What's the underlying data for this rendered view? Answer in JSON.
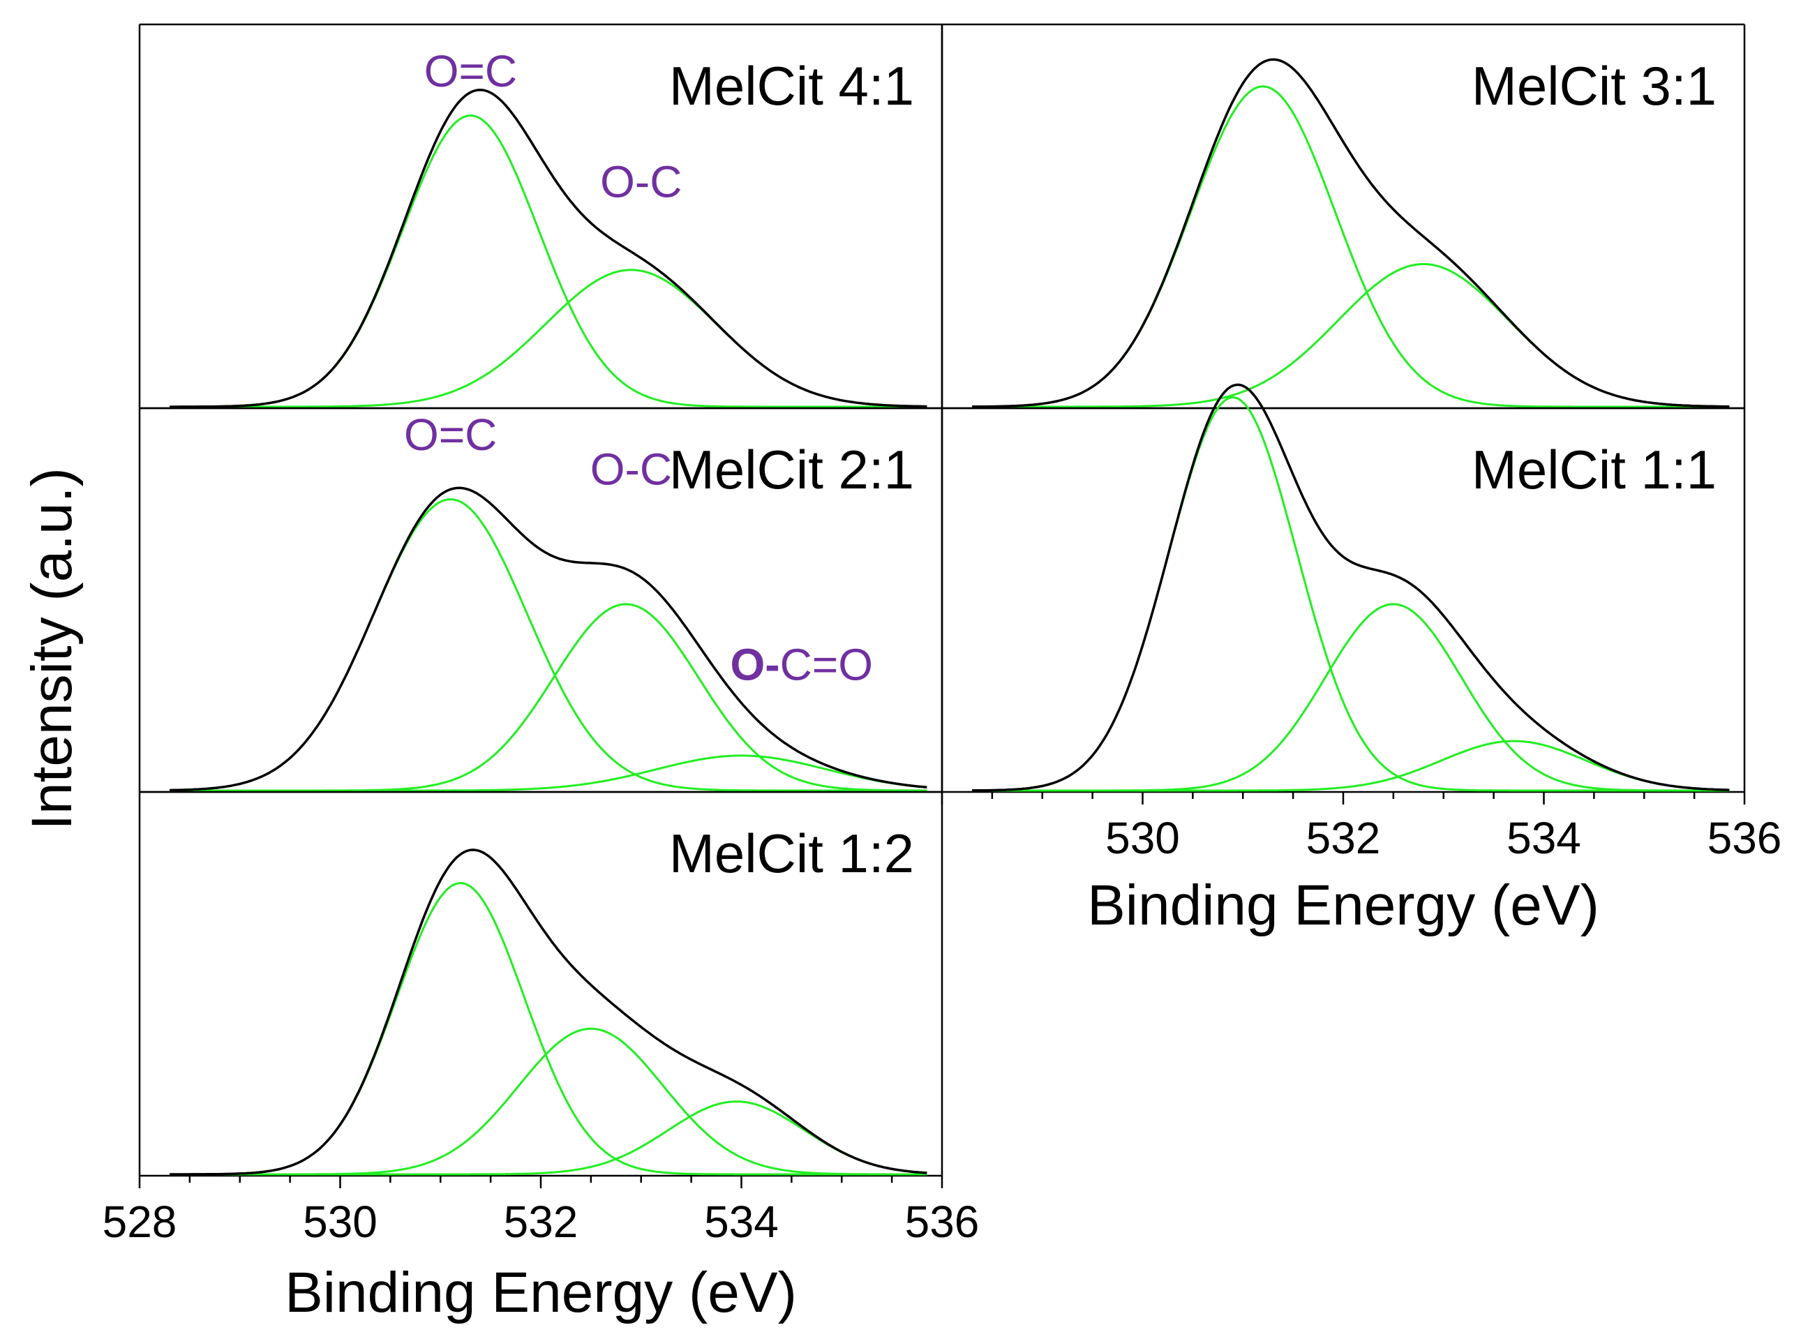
{
  "figure": {
    "ylabel": "Intensity (a.u.)",
    "xlabel": "Binding Energy (eV)",
    "colors": {
      "envelope": "#000000",
      "component": "#22ee22",
      "annotation": "#7030a0",
      "axis": "#000000"
    }
  },
  "chart_data": [
    {
      "type": "line",
      "title": "MelCit 4:1",
      "xlabel": "Binding Energy (eV)",
      "ylabel": "Intensity (a.u.)",
      "xlim": [
        528,
        536
      ],
      "ylim": [
        0,
        1.15
      ],
      "x_direction": "increasing",
      "annotations": [
        {
          "text": "O=C",
          "x": 531.3,
          "y": 1.1
        },
        {
          "text": "O-C",
          "x": 533.0,
          "y": 0.72
        }
      ],
      "series": [
        {
          "name": "Envelope",
          "role": "envelope",
          "peak_sum_of": [
            "O=C",
            "O-C"
          ]
        },
        {
          "name": "O=C",
          "role": "component",
          "center": 531.3,
          "amplitude": 1.0,
          "fwhm": 1.6
        },
        {
          "name": "O-C",
          "role": "component",
          "center": 532.9,
          "amplitude": 0.47,
          "fwhm": 2.0
        }
      ]
    },
    {
      "type": "line",
      "title": "MelCit 3:1",
      "xlabel": "Binding Energy (eV)",
      "ylabel": "Intensity (a.u.)",
      "xlim": [
        528,
        536
      ],
      "ylim": [
        0,
        1.15
      ],
      "x_direction": "increasing",
      "annotations": [],
      "series": [
        {
          "name": "Envelope",
          "role": "envelope"
        },
        {
          "name": "O=C",
          "role": "component",
          "center": 531.2,
          "amplitude": 1.1,
          "fwhm": 1.7
        },
        {
          "name": "O-C",
          "role": "component",
          "center": 532.8,
          "amplitude": 0.49,
          "fwhm": 2.0
        }
      ]
    },
    {
      "type": "line",
      "title": "MelCit 2:1",
      "xlabel": "Binding Energy (eV)",
      "ylabel": "Intensity (a.u.)",
      "xlim": [
        528,
        536
      ],
      "ylim": [
        0,
        1.15
      ],
      "x_direction": "increasing",
      "annotations": [
        {
          "text": "O=C",
          "x": 531.1,
          "y": 1.25
        },
        {
          "text": "O-C",
          "x": 532.9,
          "y": 1.05
        },
        {
          "text": "O-C=O",
          "x": 534.6,
          "y": 0.38,
          "bold_prefix": "O-",
          "rest": "C=O"
        }
      ],
      "series": [
        {
          "name": "Envelope",
          "role": "envelope"
        },
        {
          "name": "O=C",
          "role": "component",
          "center": 531.1,
          "amplitude": 1.0,
          "fwhm": 1.8
        },
        {
          "name": "O-C",
          "role": "component",
          "center": 532.85,
          "amplitude": 0.64,
          "fwhm": 1.7
        },
        {
          "name": "O-C=O",
          "role": "component",
          "center": 534.0,
          "amplitude": 0.12,
          "fwhm": 2.0
        }
      ]
    },
    {
      "type": "line",
      "title": "MelCit 1:1",
      "xlabel": "Binding Energy (eV)",
      "ylabel": "Intensity (a.u.)",
      "xlim": [
        528,
        536
      ],
      "ylim": [
        0,
        1.15
      ],
      "x_direction": "increasing",
      "xticks": [
        530,
        532,
        534,
        536
      ],
      "annotations": [],
      "series": [
        {
          "name": "Envelope",
          "role": "envelope"
        },
        {
          "name": "O=C",
          "role": "component",
          "center": 530.9,
          "amplitude": 1.35,
          "fwhm": 1.5
        },
        {
          "name": "O-C",
          "role": "component",
          "center": 532.5,
          "amplitude": 0.64,
          "fwhm": 1.6
        },
        {
          "name": "O-C=O",
          "role": "component",
          "center": 533.7,
          "amplitude": 0.17,
          "fwhm": 1.7
        }
      ]
    },
    {
      "type": "line",
      "title": "MelCit 1:2",
      "xlabel": "Binding Energy (eV)",
      "ylabel": "Intensity (a.u.)",
      "xlim": [
        528,
        536
      ],
      "ylim": [
        0,
        1.15
      ],
      "x_direction": "increasing",
      "xticks": [
        528,
        530,
        532,
        534,
        536
      ],
      "annotations": [],
      "series": [
        {
          "name": "Envelope",
          "role": "envelope"
        },
        {
          "name": "O=C",
          "role": "component",
          "center": 531.2,
          "amplitude": 1.0,
          "fwhm": 1.5
        },
        {
          "name": "O-C",
          "role": "component",
          "center": 532.5,
          "amplitude": 0.5,
          "fwhm": 1.7
        },
        {
          "name": "O-C=O",
          "role": "component",
          "center": 533.95,
          "amplitude": 0.25,
          "fwhm": 1.6
        }
      ]
    }
  ]
}
